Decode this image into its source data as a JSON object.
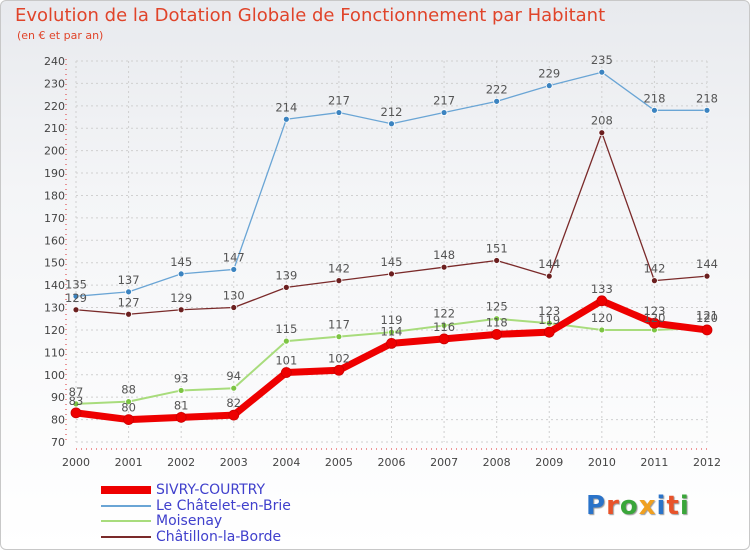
{
  "chart_data": {
    "type": "line",
    "title": "Evolution de la Dotation Globale de Fonctionnement par Habitant",
    "subtitle": "(en € et par an)",
    "xlabel": "",
    "ylabel": "",
    "x": [
      "2000",
      "2001",
      "2002",
      "2003",
      "2004",
      "2005",
      "2006",
      "2007",
      "2008",
      "2009",
      "2010",
      "2011",
      "2012"
    ],
    "ylim": [
      70,
      240
    ],
    "yticks": [
      70,
      80,
      90,
      100,
      110,
      120,
      130,
      140,
      150,
      160,
      170,
      180,
      190,
      200,
      210,
      220,
      230,
      240
    ],
    "legend_position": "bottom-left",
    "series": [
      {
        "name": "Le Châtelet-en-Brie",
        "color": "#6aa5d5",
        "marker": "#3b83c0",
        "width": 1.3,
        "values": [
          135,
          137,
          145,
          147,
          214,
          217,
          212,
          217,
          222,
          229,
          235,
          218,
          218
        ]
      },
      {
        "name": "Châtillon-la-Borde",
        "color": "#7a2a2a",
        "marker": "#6b1f1f",
        "width": 1.3,
        "values": [
          129,
          127,
          129,
          130,
          139,
          142,
          145,
          148,
          151,
          144,
          208,
          142,
          144
        ]
      },
      {
        "name": "Moisenay",
        "color": "#a8dc7c",
        "marker": "#7cc443",
        "width": 2,
        "values": [
          87,
          88,
          93,
          94,
          115,
          117,
          119,
          122,
          125,
          123,
          120,
          120,
          121
        ]
      },
      {
        "name": "SIVRY-COURTRY",
        "color": "#ee0000",
        "marker": "#ee0000",
        "width": 7,
        "values": [
          83,
          80,
          81,
          82,
          101,
          102,
          114,
          116,
          118,
          119,
          133,
          123,
          120
        ]
      }
    ],
    "legend_order": [
      "SIVRY-COURTRY",
      "Le Châtelet-en-Brie",
      "Moisenay",
      "Châtillon-la-Borde"
    ]
  },
  "branding": {
    "logo_letters": [
      "P",
      "r",
      "o",
      "x",
      "i",
      "t",
      "i"
    ],
    "logo_colors": [
      "#2a73c9",
      "#e8532a",
      "#3aa63a",
      "#f0a020",
      "#2a73c9",
      "#e8532a",
      "#3aa63a"
    ]
  }
}
